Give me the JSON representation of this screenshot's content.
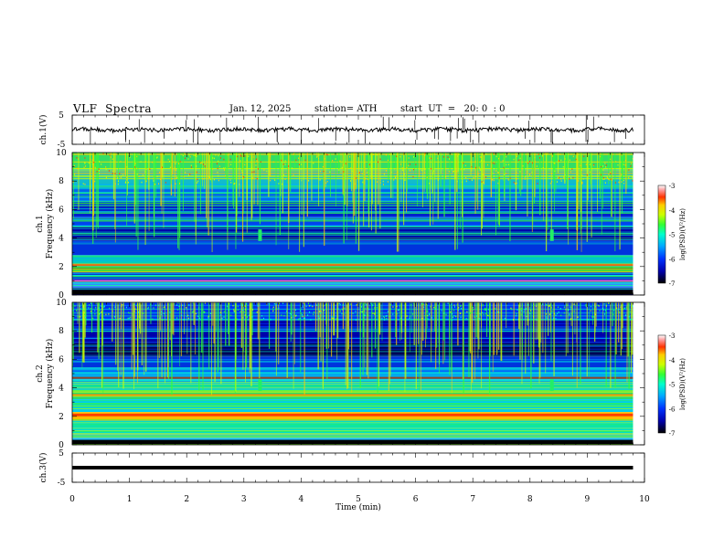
{
  "header": {
    "title": "VLF  Spectra",
    "date": "Jan. 12, 2025",
    "station": "station= ATH",
    "start": "start  UT  =   20: 0  : 0"
  },
  "chart_data": [
    {
      "type": "line",
      "name": "ch1-waveform",
      "ylabel": "ch.1(V)",
      "ylim": [
        -5,
        5
      ],
      "yticks": [
        "5",
        "-5"
      ],
      "xlim": [
        0,
        10
      ],
      "baseline": 0,
      "color": "#000000"
    },
    {
      "type": "heatmap",
      "name": "ch1-spectrogram",
      "ylabel": "ch.1",
      "ylabel2": "Frequency  (kHz)",
      "ylim": [
        0,
        10
      ],
      "yticks": [
        "0",
        "2",
        "4",
        "6",
        "8",
        "10"
      ],
      "xlim": [
        0,
        10
      ],
      "colorbar": {
        "label": "log(PSD)(V²/Hz)",
        "range": [
          -7,
          -3
        ],
        "ticks": [
          "-3",
          "-4",
          "-5",
          "-6",
          "-7"
        ]
      }
    },
    {
      "type": "heatmap",
      "name": "ch2-spectrogram",
      "ylabel": "ch.2",
      "ylabel2": "Frequency  (kHz)",
      "ylim": [
        0,
        10
      ],
      "yticks": [
        "0",
        "2",
        "4",
        "6",
        "8",
        "10"
      ],
      "xlim": [
        0,
        10
      ],
      "colorbar": {
        "label": "log(PSD)(V²/Hz)",
        "range": [
          -7,
          -3
        ],
        "ticks": [
          "-3",
          "-4",
          "-5",
          "-6",
          "-7"
        ]
      }
    },
    {
      "type": "line",
      "name": "ch3-waveform",
      "ylabel": "ch.3(V)",
      "ylim": [
        -5,
        5
      ],
      "yticks": [
        "5",
        "-5"
      ],
      "xlim": [
        0,
        10
      ],
      "baseline": 0,
      "color": "#000000"
    }
  ],
  "xaxis": {
    "label": "Time  (min)",
    "ticks": [
      "0",
      "1",
      "2",
      "3",
      "4",
      "5",
      "6",
      "7",
      "8",
      "9",
      "10"
    ],
    "range": [
      0,
      10
    ],
    "data_end": 9.8
  },
  "colors": {
    "colormap": [
      "#000000",
      "#0000aa",
      "#0033ff",
      "#00aaff",
      "#00ffcc",
      "#33ff33",
      "#ccff00",
      "#ffcc00",
      "#ff4400",
      "#ff0000",
      "#ffffff"
    ]
  }
}
